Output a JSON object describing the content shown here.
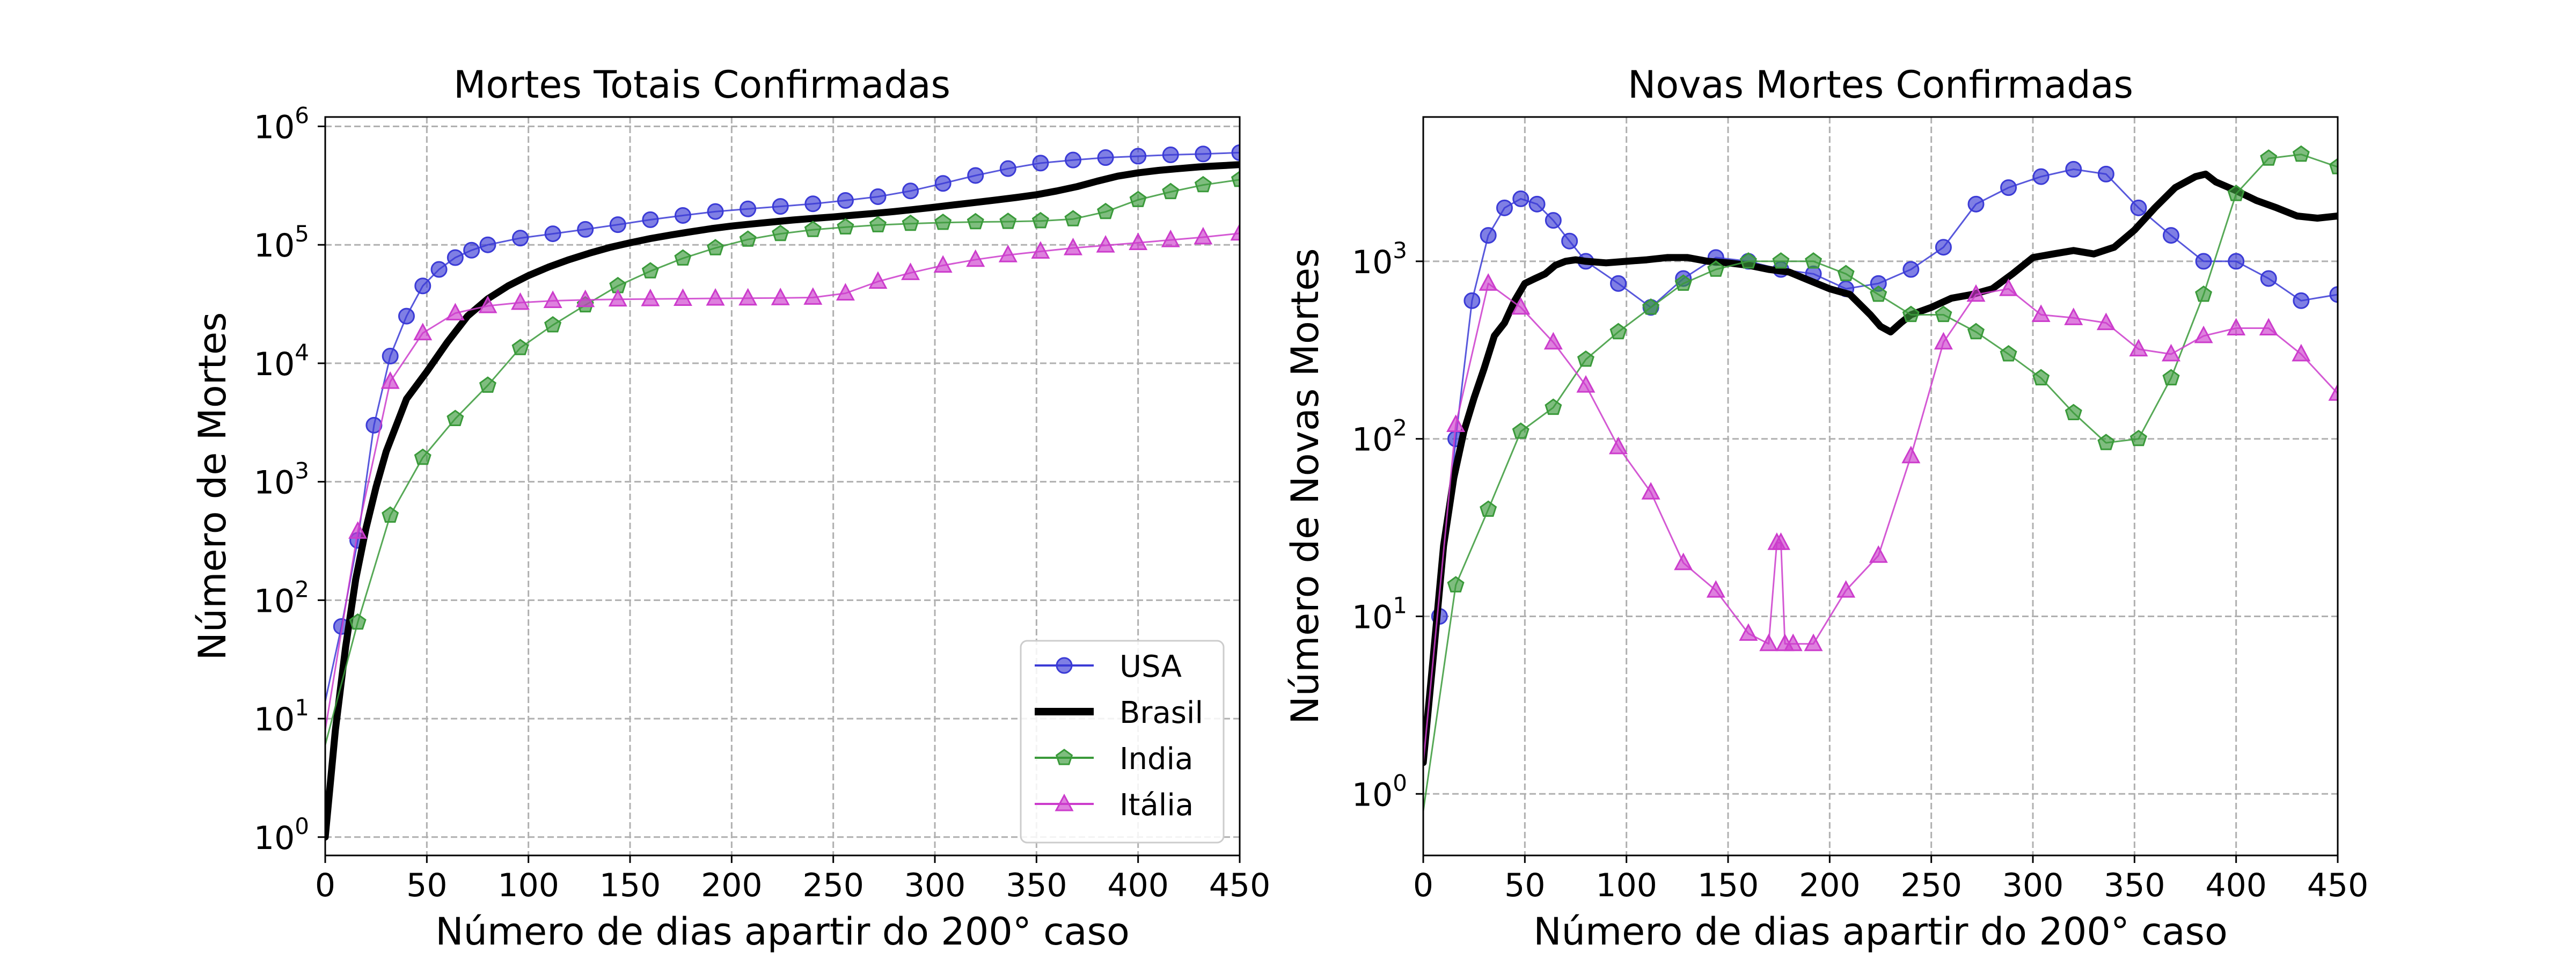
{
  "chart_data": [
    {
      "type": "line",
      "title": "Mortes Totais Confirmadas",
      "xlabel": "Número de dias apartir do 200° caso",
      "ylabel": "Número de Mortes",
      "yscale": "log",
      "xlim": [
        0,
        450
      ],
      "ylim": [
        0.7,
        1200000
      ],
      "grid": true,
      "legend_position": "lower-right",
      "xticks": [
        0,
        50,
        100,
        150,
        200,
        250,
        300,
        350,
        400,
        450
      ],
      "yticks": [
        {
          "value": 1,
          "base": "10",
          "exp": "0"
        },
        {
          "value": 10,
          "base": "10",
          "exp": "1"
        },
        {
          "value": 100,
          "base": "10",
          "exp": "2"
        },
        {
          "value": 1000,
          "base": "10",
          "exp": "3"
        },
        {
          "value": 10000,
          "base": "10",
          "exp": "4"
        },
        {
          "value": 100000,
          "base": "10",
          "exp": "5"
        },
        {
          "value": 1000000,
          "base": "10",
          "exp": "6"
        }
      ],
      "series": [
        {
          "name": "USA",
          "color": "#3b3bd6",
          "marker": "circle",
          "line_width": "thin",
          "x": [
            0,
            8,
            16,
            24,
            32,
            40,
            48,
            56,
            64,
            72,
            80,
            96,
            112,
            128,
            144,
            160,
            176,
            192,
            208,
            224,
            240,
            256,
            272,
            288,
            304,
            320,
            336,
            352,
            368,
            384,
            400,
            416,
            432,
            450
          ],
          "y": [
            14,
            60,
            320,
            3000,
            11500,
            25000,
            45000,
            62000,
            78000,
            90000,
            100000,
            114000,
            124000,
            135000,
            148000,
            163000,
            177000,
            191000,
            201000,
            211000,
            222000,
            237000,
            255000,
            285000,
            330000,
            385000,
            440000,
            490000,
            520000,
            545000,
            560000,
            575000,
            585000,
            600000
          ]
        },
        {
          "name": "Brasil",
          "color": "#000000",
          "marker": "none",
          "line_width": "thick",
          "x": [
            0,
            5,
            10,
            15,
            20,
            25,
            30,
            40,
            50,
            60,
            70,
            80,
            90,
            100,
            110,
            120,
            130,
            140,
            150,
            160,
            170,
            180,
            190,
            200,
            210,
            220,
            230,
            240,
            250,
            260,
            270,
            280,
            290,
            300,
            310,
            320,
            330,
            340,
            350,
            360,
            370,
            380,
            390,
            400,
            410,
            420,
            430,
            440,
            450
          ],
          "y": [
            1,
            8,
            40,
            150,
            400,
            900,
            1800,
            5000,
            8500,
            15000,
            25000,
            35000,
            45000,
            55000,
            65000,
            75000,
            85000,
            95000,
            104000,
            113000,
            121000,
            129000,
            137000,
            144000,
            150000,
            156000,
            162000,
            167000,
            172000,
            178000,
            184000,
            191000,
            199000,
            208000,
            218000,
            228000,
            239000,
            251000,
            265000,
            285000,
            310000,
            345000,
            380000,
            405000,
            425000,
            440000,
            455000,
            465000,
            475000
          ]
        },
        {
          "name": "India",
          "color": "#3a9a3a",
          "marker": "pentagon",
          "line_width": "thin",
          "x": [
            0,
            16,
            32,
            48,
            64,
            80,
            96,
            112,
            128,
            144,
            160,
            176,
            192,
            208,
            224,
            240,
            256,
            272,
            288,
            304,
            320,
            336,
            352,
            368,
            384,
            400,
            416,
            432,
            450
          ],
          "y": [
            6,
            65,
            520,
            1600,
            3400,
            6500,
            13500,
            21000,
            31000,
            45000,
            60000,
            77000,
            94000,
            111000,
            124000,
            134000,
            141000,
            147000,
            151000,
            154000,
            156000,
            157000,
            159000,
            165000,
            190000,
            240000,
            280000,
            320000,
            355000
          ]
        },
        {
          "name": "Itália",
          "color": "#cc3ccc",
          "marker": "triangle",
          "line_width": "thin",
          "x": [
            0,
            16,
            32,
            48,
            64,
            80,
            96,
            112,
            128,
            144,
            160,
            176,
            192,
            208,
            224,
            240,
            256,
            272,
            288,
            304,
            320,
            336,
            352,
            368,
            384,
            400,
            416,
            432,
            450
          ],
          "y": [
            8,
            380,
            7000,
            18000,
            26500,
            30500,
            32500,
            33700,
            34300,
            34700,
            34900,
            35100,
            35300,
            35400,
            35600,
            35900,
            39000,
            49000,
            58000,
            67000,
            75000,
            82000,
            88000,
            94000,
            99000,
            104000,
            110000,
            116000,
            125000
          ]
        }
      ]
    },
    {
      "type": "line",
      "title": "Novas Mortes Confirmadas",
      "xlabel": "Número de dias apartir do 200° caso",
      "ylabel": "Número de Novas Mortes",
      "yscale": "log",
      "xlim": [
        0,
        450
      ],
      "ylim": [
        0.45,
        6500
      ],
      "grid": true,
      "xticks": [
        0,
        50,
        100,
        150,
        200,
        250,
        300,
        350,
        400,
        450
      ],
      "yticks": [
        {
          "value": 1,
          "base": "10",
          "exp": "0"
        },
        {
          "value": 10,
          "base": "10",
          "exp": "1"
        },
        {
          "value": 100,
          "base": "10",
          "exp": "2"
        },
        {
          "value": 1000,
          "base": "10",
          "exp": "3"
        }
      ],
      "series": [
        {
          "name": "USA",
          "color": "#3b3bd6",
          "marker": "circle",
          "line_width": "thin",
          "x": [
            0,
            8,
            16,
            24,
            32,
            40,
            48,
            56,
            64,
            72,
            80,
            96,
            112,
            128,
            144,
            160,
            176,
            192,
            208,
            224,
            240,
            256,
            272,
            288,
            304,
            320,
            336,
            352,
            368,
            384,
            400,
            416,
            432,
            450
          ],
          "y": [
            1.5,
            10,
            100,
            600,
            1400,
            2000,
            2250,
            2100,
            1700,
            1300,
            1000,
            750,
            550,
            800,
            1050,
            1000,
            900,
            850,
            700,
            750,
            900,
            1200,
            2100,
            2600,
            3000,
            3300,
            3100,
            2000,
            1400,
            1000,
            1000,
            800,
            600,
            650
          ]
        },
        {
          "name": "Brasil",
          "color": "#000000",
          "marker": "none",
          "line_width": "thick",
          "x": [
            0,
            5,
            10,
            15,
            20,
            25,
            30,
            35,
            40,
            45,
            50,
            55,
            60,
            65,
            70,
            75,
            80,
            90,
            100,
            110,
            120,
            130,
            140,
            150,
            160,
            170,
            180,
            190,
            200,
            210,
            220,
            225,
            230,
            235,
            240,
            250,
            260,
            270,
            280,
            290,
            300,
            310,
            320,
            330,
            340,
            350,
            360,
            370,
            380,
            385,
            390,
            400,
            410,
            420,
            430,
            440,
            450
          ],
          "y": [
            1.5,
            6,
            25,
            60,
            110,
            170,
            250,
            380,
            450,
            600,
            750,
            800,
            850,
            950,
            1000,
            1020,
            1000,
            980,
            1000,
            1020,
            1050,
            1050,
            1000,
            980,
            950,
            900,
            870,
            780,
            700,
            650,
            500,
            430,
            400,
            450,
            500,
            550,
            620,
            650,
            700,
            850,
            1050,
            1100,
            1150,
            1100,
            1200,
            1500,
            2000,
            2600,
            3000,
            3100,
            2800,
            2500,
            2200,
            2000,
            1800,
            1750,
            1800
          ]
        },
        {
          "name": "India",
          "color": "#3a9a3a",
          "marker": "pentagon",
          "line_width": "thin",
          "x": [
            0,
            16,
            32,
            48,
            64,
            80,
            96,
            112,
            128,
            144,
            160,
            176,
            192,
            208,
            224,
            240,
            256,
            272,
            288,
            304,
            320,
            336,
            352,
            368,
            384,
            400,
            416,
            432,
            450
          ],
          "y": [
            0.8,
            15,
            40,
            110,
            150,
            280,
            400,
            550,
            750,
            900,
            1000,
            1000,
            1000,
            850,
            650,
            500,
            500,
            400,
            300,
            220,
            140,
            95,
            100,
            220,
            650,
            2400,
            3800,
            4000,
            3400
          ]
        },
        {
          "name": "Itália",
          "color": "#cc3ccc",
          "marker": "triangle",
          "line_width": "thin",
          "x": [
            0,
            16,
            32,
            48,
            64,
            80,
            96,
            112,
            128,
            144,
            160,
            170,
            174,
            176,
            178,
            182,
            192,
            208,
            224,
            240,
            256,
            272,
            288,
            304,
            320,
            336,
            352,
            368,
            384,
            400,
            416,
            432,
            450
          ],
          "y": [
            1.5,
            120,
            750,
            550,
            350,
            200,
            90,
            50,
            20,
            14,
            8,
            7,
            26,
            26,
            7,
            7,
            7,
            14,
            22,
            80,
            350,
            650,
            700,
            500,
            480,
            450,
            320,
            300,
            380,
            420,
            420,
            300,
            180
          ]
        }
      ]
    }
  ]
}
